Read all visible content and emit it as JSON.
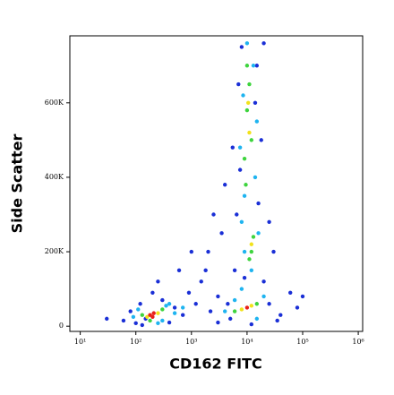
{
  "chart_data": {
    "type": "scatter",
    "x_label": "CD162 FITC",
    "y_label": "Side Scatter",
    "xscale": "log",
    "xlim": [
      6.5,
      1200000
    ],
    "ylim": [
      -14000,
      780000
    ],
    "xticks": [
      {
        "value": 10,
        "label": "10¹"
      },
      {
        "value": 100,
        "label": "10²"
      },
      {
        "value": 1000,
        "label": "10³"
      },
      {
        "value": 10000,
        "label": "10⁴"
      },
      {
        "value": 100000,
        "label": "10⁵"
      },
      {
        "value": 1000000,
        "label": "10⁶"
      }
    ],
    "yticks": [
      0,
      {
        "value": 200000,
        "label": "200K"
      },
      {
        "value": 400000,
        "label": "400K"
      },
      {
        "value": 600000,
        "label": "600K"
      }
    ],
    "series": [
      {
        "color": "#1a2fd6",
        "x": [
          60,
          80,
          100,
          120,
          150,
          300,
          400,
          500,
          700,
          900,
          1200,
          1500,
          2000,
          2500,
          3000,
          3500,
          4000,
          1800,
          2200,
          5000,
          25000,
          40000,
          60000,
          80000,
          20000,
          30000,
          6000,
          7000,
          8000,
          15000,
          20000,
          6500,
          9000,
          16000,
          25000,
          100000,
          30,
          250,
          5500,
          18000,
          7500,
          14000,
          3000,
          12000,
          35000,
          130,
          200,
          600,
          1000,
          4500
        ],
        "y": [
          15000,
          40000,
          8000,
          60000,
          20000,
          70000,
          10000,
          50000,
          30000,
          90000,
          60000,
          120000,
          200000,
          300000,
          80000,
          250000,
          380000,
          150000,
          40000,
          20000,
          60000,
          30000,
          90000,
          50000,
          120000,
          200000,
          150000,
          650000,
          750000,
          700000,
          760000,
          300000,
          130000,
          330000,
          280000,
          80000,
          20000,
          120000,
          480000,
          500000,
          420000,
          600000,
          10000,
          5000,
          15000,
          3000,
          90000,
          150000,
          200000,
          60000
        ]
      },
      {
        "color": "#1fb4f0",
        "x": [
          90,
          110,
          300,
          350,
          500,
          700,
          4000,
          6000,
          15000,
          20000,
          8000,
          12000,
          9000,
          16000,
          8000,
          9000,
          14000,
          7500,
          15000,
          8500,
          13000,
          10000,
          250,
          400
        ],
        "y": [
          25000,
          45000,
          15000,
          55000,
          35000,
          50000,
          40000,
          70000,
          20000,
          80000,
          100000,
          150000,
          200000,
          250000,
          280000,
          350000,
          400000,
          480000,
          550000,
          620000,
          700000,
          760000,
          8000,
          60000
        ]
      },
      {
        "color": "#3ed43e",
        "x": [
          130,
          300,
          180,
          6000,
          15000,
          12000,
          13000,
          11000,
          9000,
          12000,
          10000,
          11000,
          9500,
          10000
        ],
        "y": [
          30000,
          45000,
          15000,
          40000,
          60000,
          200000,
          240000,
          180000,
          450000,
          500000,
          580000,
          650000,
          380000,
          700000
        ]
      },
      {
        "color": "#f2e21b",
        "x": [
          160,
          250,
          8000,
          12000,
          11000,
          10500,
          12000
        ],
        "y": [
          25000,
          35000,
          45000,
          55000,
          520000,
          600000,
          220000
        ]
      },
      {
        "color": "#e8201a",
        "x": [
          180,
          210,
          200,
          10000
        ],
        "y": [
          30000,
          35000,
          25000,
          50000
        ]
      }
    ]
  }
}
